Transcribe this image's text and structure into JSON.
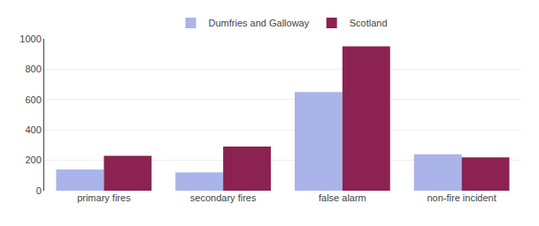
{
  "chart_data": {
    "type": "bar",
    "categories": [
      "primary fires",
      "secondary fires",
      "false alarm",
      "non-fire incident"
    ],
    "series": [
      {
        "name": "Dumfries and Galloway",
        "color": "#aab4e8",
        "values": [
          140,
          120,
          650,
          240
        ]
      },
      {
        "name": "Scotland",
        "color": "#8b2252",
        "values": [
          230,
          290,
          950,
          220
        ]
      }
    ],
    "ylim": [
      0,
      1000
    ],
    "yticks": [
      0,
      200,
      400,
      600,
      800,
      1000
    ],
    "grid": true,
    "legend": "top"
  }
}
